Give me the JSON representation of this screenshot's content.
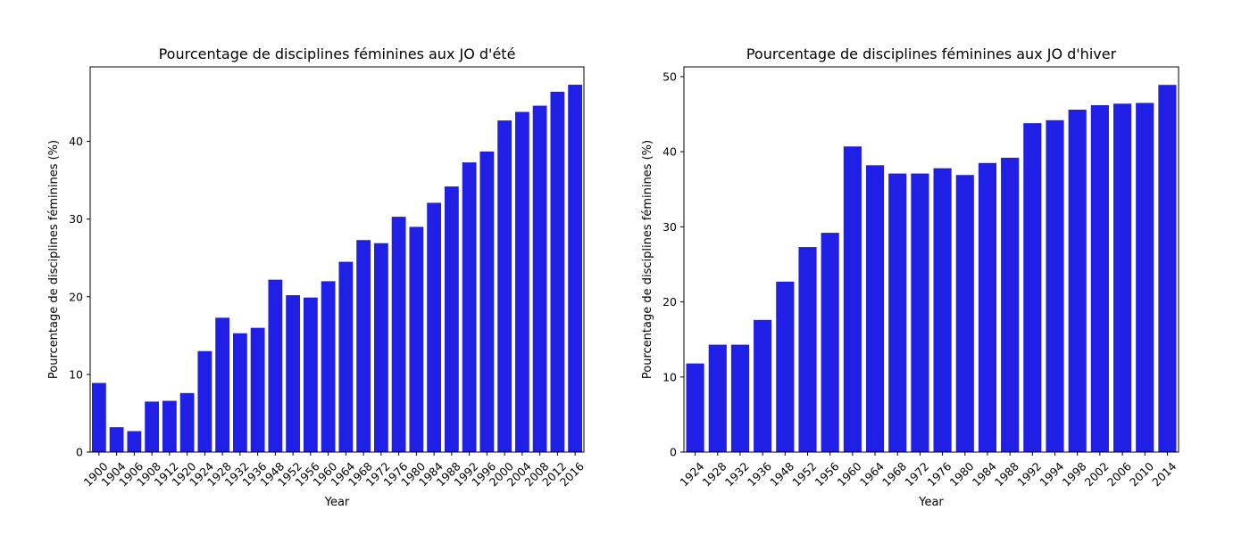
{
  "figure": {
    "bar_color": "#1f1fe6",
    "background": "#ffffff"
  },
  "chart_data": [
    {
      "type": "bar",
      "title": "Pourcentage de disciplines féminines aux JO d'été",
      "xlabel": "Year",
      "ylabel": "Pourcentage de disciplines féminines (%)",
      "ylim": [
        0,
        49.6
      ],
      "yticks": [
        0,
        10,
        20,
        30,
        40
      ],
      "grid": false,
      "categories": [
        "1900",
        "1904",
        "1906",
        "1908",
        "1912",
        "1920",
        "1924",
        "1928",
        "1932",
        "1936",
        "1948",
        "1952",
        "1956",
        "1960",
        "1964",
        "1968",
        "1972",
        "1976",
        "1980",
        "1984",
        "1988",
        "1992",
        "1996",
        "2000",
        "2004",
        "2008",
        "2012",
        "2016"
      ],
      "values": [
        8.9,
        3.2,
        2.7,
        6.5,
        6.6,
        7.6,
        13.0,
        17.3,
        15.3,
        16.0,
        22.2,
        20.2,
        19.9,
        22.0,
        24.5,
        27.3,
        26.9,
        30.3,
        29.0,
        32.1,
        34.2,
        37.3,
        38.7,
        42.7,
        43.8,
        44.6,
        46.4,
        47.3
      ]
    },
    {
      "type": "bar",
      "title": "Pourcentage de disciplines féminines aux JO d'hiver",
      "xlabel": "Year",
      "ylabel": "Pourcentage de disciplines féminines (%)",
      "ylim": [
        0,
        51.3
      ],
      "yticks": [
        0,
        10,
        20,
        30,
        40,
        50
      ],
      "grid": false,
      "categories": [
        "1924",
        "1928",
        "1932",
        "1936",
        "1948",
        "1952",
        "1956",
        "1960",
        "1964",
        "1968",
        "1972",
        "1976",
        "1980",
        "1984",
        "1988",
        "1992",
        "1994",
        "1998",
        "2002",
        "2006",
        "2010",
        "2014"
      ],
      "values": [
        11.8,
        14.3,
        14.3,
        17.6,
        22.7,
        27.3,
        29.2,
        40.7,
        38.2,
        37.1,
        37.1,
        37.8,
        36.9,
        38.5,
        39.2,
        43.8,
        44.2,
        45.6,
        46.2,
        46.4,
        46.5,
        48.9
      ]
    }
  ]
}
